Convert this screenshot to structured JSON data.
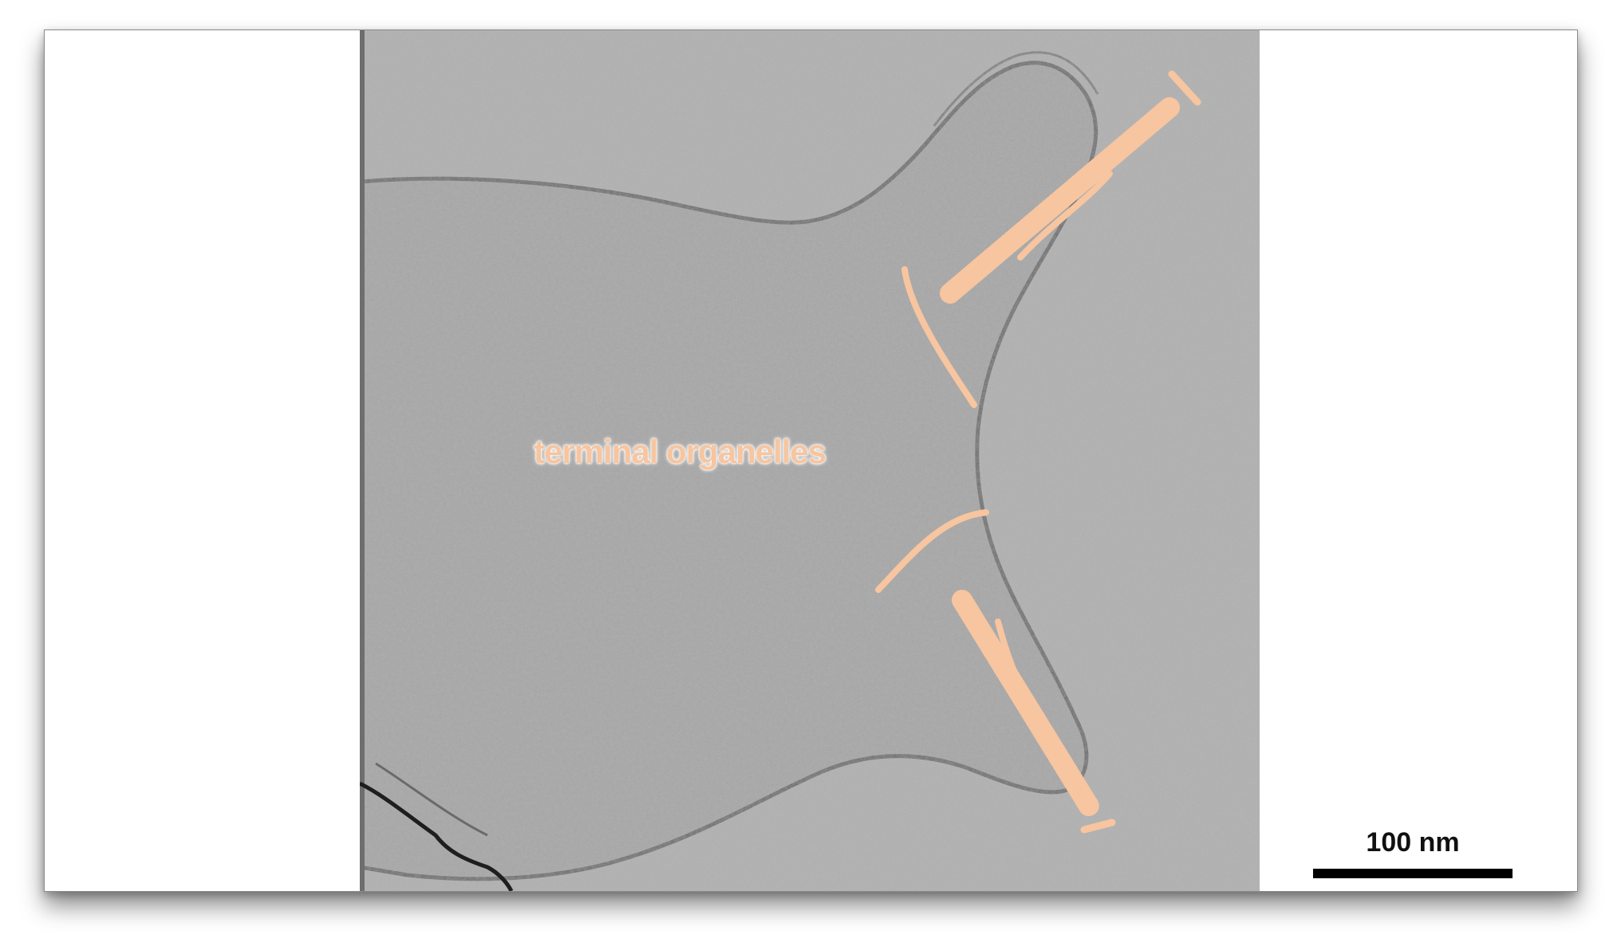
{
  "annotation": {
    "label": "terminal organelles",
    "color": "#f7c59f"
  },
  "scale_bar": {
    "label": "100 nm",
    "color": "#000000"
  },
  "image": {
    "subject": "cryo-electron tomogram of cell with terminal organelles",
    "background_gray": "#a6a6a6"
  }
}
